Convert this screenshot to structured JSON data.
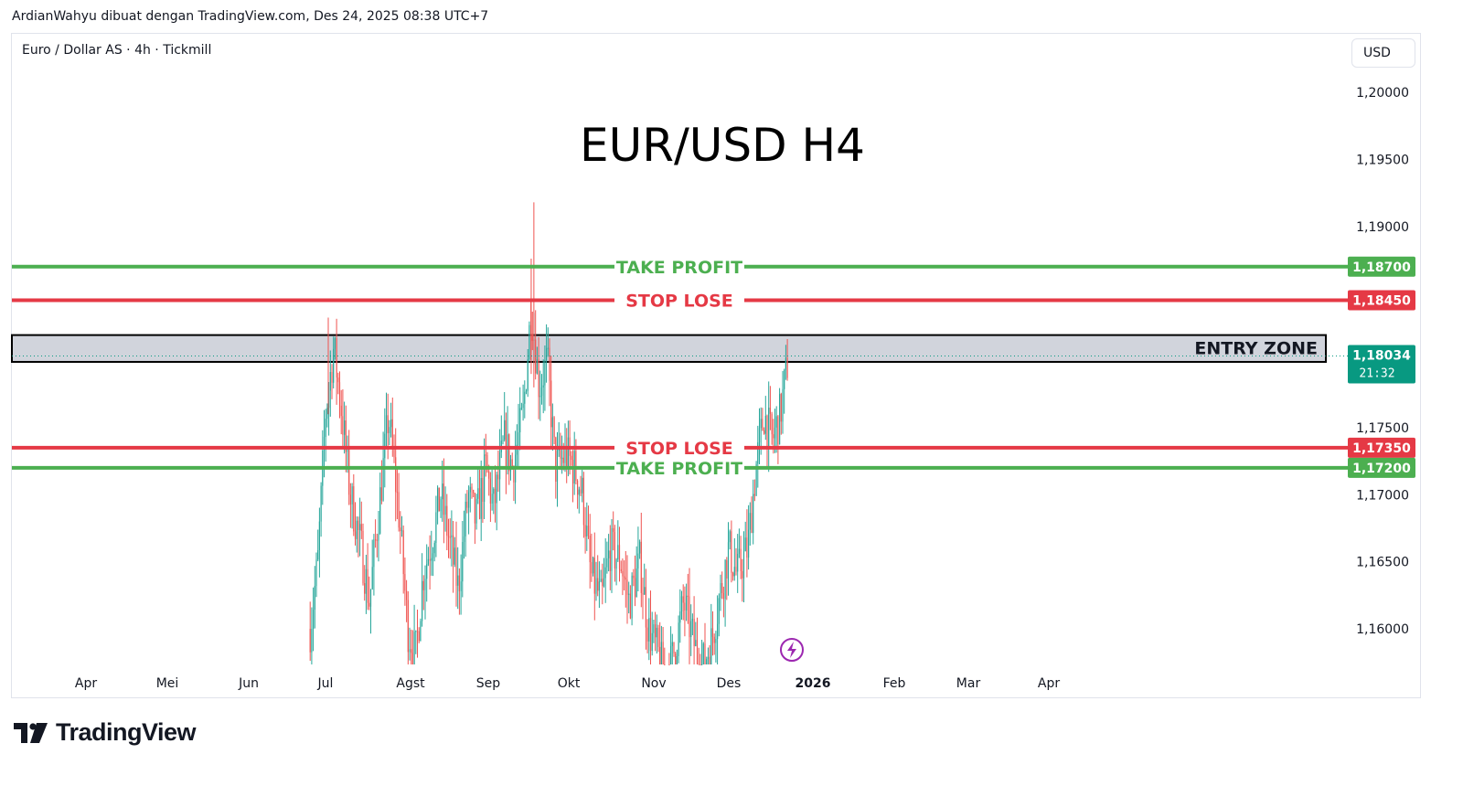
{
  "header": {
    "attribution": "ArdianWahyu dibuat dengan TradingView.com, Des 24, 2025 08:38 UTC+7",
    "symbol": "Euro / Dollar AS · 4h · Tickmill",
    "currency": "USD"
  },
  "footer": {
    "brand": "TradingView"
  },
  "colors": {
    "green": "#4caf50",
    "red": "#e53945",
    "teal": "#089981",
    "entry_fill": "#d1d4dc",
    "bull": "#26a69a",
    "bear": "#ef5350",
    "flash": "#9c27b0"
  },
  "chart_data": {
    "type": "candlestick",
    "title": "EUR/USD H4",
    "ylim": [
      1.1572,
      1.2065
    ],
    "y_ticks": [
      {
        "value": 1.2,
        "label": "1,20000"
      },
      {
        "value": 1.195,
        "label": "1,19500"
      },
      {
        "value": 1.19,
        "label": "1,19000"
      },
      {
        "value": 1.175,
        "label": "1,17500"
      },
      {
        "value": 1.17,
        "label": "1,17000"
      },
      {
        "value": 1.165,
        "label": "1,16500"
      },
      {
        "value": 1.16,
        "label": "1,16000"
      }
    ],
    "x_ticks": [
      {
        "date": "2025-04-01",
        "label": "Apr",
        "bold": false
      },
      {
        "date": "2025-05-01",
        "label": "Mei",
        "bold": false
      },
      {
        "date": "2025-06-01",
        "label": "Jun",
        "bold": false
      },
      {
        "date": "2025-07-01",
        "label": "Jul",
        "bold": false
      },
      {
        "date": "2025-08-01",
        "label": "Agst",
        "bold": false
      },
      {
        "date": "2025-09-01",
        "label": "Sep",
        "bold": false
      },
      {
        "date": "2025-10-01",
        "label": "Okt",
        "bold": false
      },
      {
        "date": "2025-11-01",
        "label": "Nov",
        "bold": false
      },
      {
        "date": "2025-12-01",
        "label": "Des",
        "bold": false
      },
      {
        "date": "2026-01-01",
        "label": "2026",
        "bold": true
      },
      {
        "date": "2026-02-01",
        "label": "Feb",
        "bold": false
      },
      {
        "date": "2026-03-01",
        "label": "Mar",
        "bold": false
      },
      {
        "date": "2026-04-01",
        "label": "Apr",
        "bold": false
      }
    ],
    "levels": [
      {
        "name": "TAKE PROFIT",
        "value": 1.187,
        "label": "1,18700",
        "color": "green"
      },
      {
        "name": "STOP LOSE",
        "value": 1.1845,
        "label": "1,18450",
        "color": "red"
      },
      {
        "name": "STOP LOSE",
        "value": 1.1735,
        "label": "1,17350",
        "color": "red"
      },
      {
        "name": "TAKE PROFIT",
        "value": 1.172,
        "label": "1,17200",
        "color": "green"
      }
    ],
    "entry_zone": {
      "label": "ENTRY ZONE",
      "top": 1.1819,
      "bottom": 1.1799
    },
    "last_price": {
      "value": 1.18034,
      "label": "1,18034",
      "countdown": "21:32"
    },
    "series": [
      {
        "name": "",
        "points": [
          [
            "2025-06-25",
            1.16
          ],
          [
            "2025-06-28",
            1.165
          ],
          [
            "2025-07-01",
            1.176
          ],
          [
            "2025-07-04",
            1.181
          ],
          [
            "2025-07-07",
            1.176
          ],
          [
            "2025-07-10",
            1.17
          ],
          [
            "2025-07-14",
            1.166
          ],
          [
            "2025-07-17",
            1.162
          ],
          [
            "2025-07-21",
            1.17
          ],
          [
            "2025-07-24",
            1.176
          ],
          [
            "2025-07-28",
            1.168
          ],
          [
            "2025-07-31",
            1.16
          ],
          [
            "2025-08-03",
            1.158
          ],
          [
            "2025-08-06",
            1.164
          ],
          [
            "2025-08-10",
            1.167
          ],
          [
            "2025-08-13",
            1.17
          ],
          [
            "2025-08-17",
            1.166
          ],
          [
            "2025-08-20",
            1.163
          ],
          [
            "2025-08-24",
            1.17
          ],
          [
            "2025-08-27",
            1.168
          ],
          [
            "2025-08-31",
            1.172
          ],
          [
            "2025-09-03",
            1.169
          ],
          [
            "2025-09-07",
            1.174
          ],
          [
            "2025-09-10",
            1.172
          ],
          [
            "2025-09-14",
            1.176
          ],
          [
            "2025-09-17",
            1.184
          ],
          [
            "2025-09-20",
            1.178
          ],
          [
            "2025-09-23",
            1.18
          ],
          [
            "2025-09-26",
            1.172
          ],
          [
            "2025-09-30",
            1.173
          ],
          [
            "2025-10-03",
            1.172
          ],
          [
            "2025-10-06",
            1.17
          ],
          [
            "2025-10-09",
            1.164
          ],
          [
            "2025-10-13",
            1.162
          ],
          [
            "2025-10-16",
            1.166
          ],
          [
            "2025-10-20",
            1.165
          ],
          [
            "2025-10-23",
            1.162
          ],
          [
            "2025-10-27",
            1.165
          ],
          [
            "2025-10-30",
            1.16
          ],
          [
            "2025-11-03",
            1.158
          ],
          [
            "2025-11-06",
            1.156
          ],
          [
            "2025-11-10",
            1.159
          ],
          [
            "2025-11-13",
            1.162
          ],
          [
            "2025-11-17",
            1.159
          ],
          [
            "2025-11-20",
            1.157
          ],
          [
            "2025-11-24",
            1.159
          ],
          [
            "2025-11-27",
            1.162
          ],
          [
            "2025-12-01",
            1.166
          ],
          [
            "2025-12-04",
            1.164
          ],
          [
            "2025-12-08",
            1.166
          ],
          [
            "2025-12-11",
            1.172
          ],
          [
            "2025-12-14",
            1.176
          ],
          [
            "2025-12-17",
            1.174
          ],
          [
            "2025-12-20",
            1.176
          ],
          [
            "2025-12-23",
            1.1803
          ]
        ]
      }
    ]
  }
}
